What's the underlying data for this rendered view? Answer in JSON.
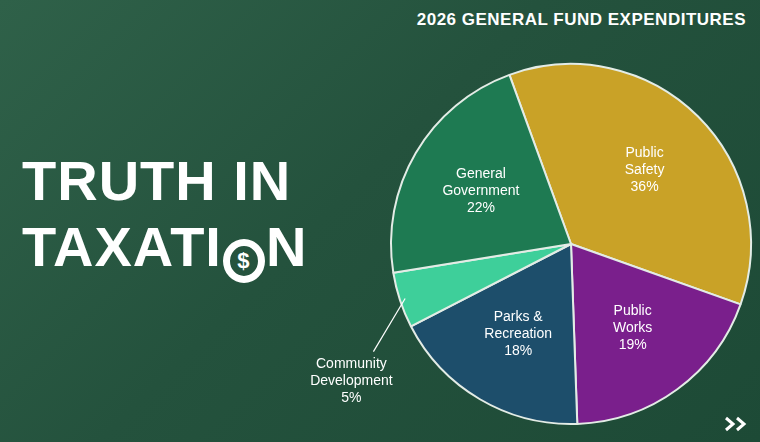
{
  "headline": {
    "line1": "TRUTH IN",
    "line2_before": "TAXATI",
    "line2_symbol": "$",
    "line2_after": "N"
  },
  "chart_data": {
    "type": "pie",
    "title": "2026 GENERAL FUND EXPENDITURES",
    "categories": [
      "Public Safety",
      "Public Works",
      "Parks & Recreation",
      "Community Development",
      "General Government"
    ],
    "values": [
      36,
      19,
      18,
      5,
      22
    ],
    "value_labels": [
      "36%",
      "19%",
      "18%",
      "5%",
      "22%"
    ],
    "colors": [
      "#c9a227",
      "#7a1f8c",
      "#1d4e6b",
      "#3ecf9a",
      "#1e7a52"
    ],
    "data_labels": true
  }
}
